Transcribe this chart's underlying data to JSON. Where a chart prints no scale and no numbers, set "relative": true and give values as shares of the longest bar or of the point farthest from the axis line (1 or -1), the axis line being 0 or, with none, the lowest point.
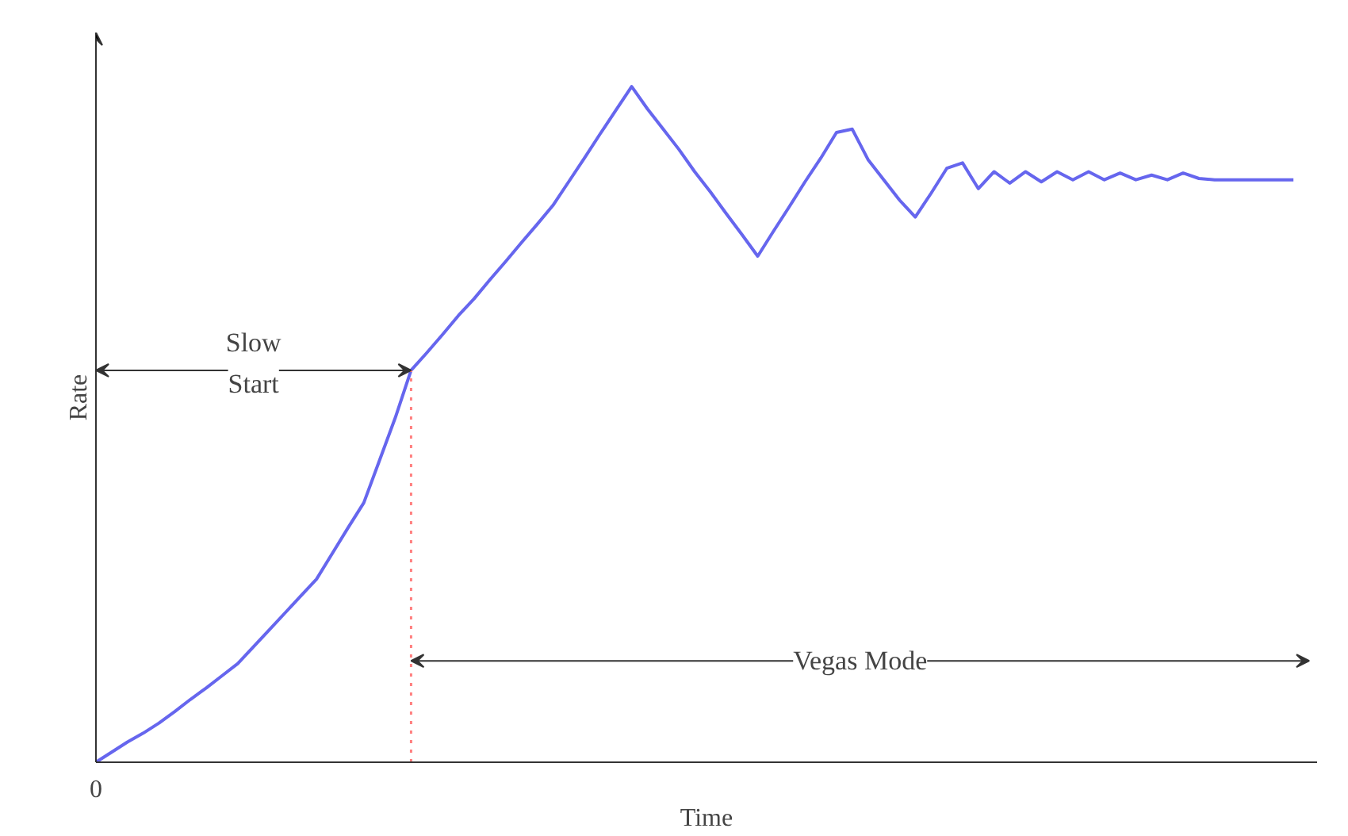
{
  "chart_data": {
    "type": "line",
    "relative": true,
    "xlabel": "Time",
    "ylabel": "Rate",
    "categories": [
      null,
      null,
      null,
      null,
      null,
      null,
      null,
      null,
      null,
      null,
      null,
      null,
      null,
      null,
      null,
      null,
      null,
      null,
      null,
      null,
      null,
      null,
      null,
      null,
      null,
      null,
      null,
      null,
      null,
      null,
      null,
      null,
      null,
      null,
      null,
      null,
      null,
      null,
      null,
      null,
      null,
      null,
      null,
      null,
      null,
      null,
      null,
      null,
      null,
      null,
      null,
      null,
      null,
      null,
      null,
      null,
      null,
      null,
      null,
      null,
      null,
      null,
      null,
      null,
      null,
      null,
      null,
      null,
      null,
      null,
      null,
      null,
      null,
      null,
      null,
      null,
      null
    ],
    "series": [
      {
        "color": "#6666ee",
        "values": [
          0,
          0.015,
          0.03,
          0.043,
          0.058,
          0.075,
          0.093,
          0.11,
          0.128,
          0.146,
          0.171,
          0.196,
          0.221,
          0.246,
          0.271,
          0.309,
          0.347,
          0.384,
          0.447,
          0.51,
          0.58,
          0.606,
          0.633,
          0.661,
          0.686,
          0.714,
          0.741,
          0.769,
          0.796,
          0.824,
          0.859,
          0.894,
          0.93,
          0.965,
          1,
          0.967,
          0.937,
          0.907,
          0.874,
          0.844,
          0.812,
          0.781,
          0.749,
          0.786,
          0.822,
          0.859,
          0.894,
          0.932,
          0.937,
          0.892,
          0.862,
          0.832,
          0.807,
          0.842,
          0.879,
          0.887,
          0.849,
          0.874,
          0.857,
          0.874,
          0.859,
          0.874,
          0.862,
          0.874,
          0.862,
          0.872,
          0.862,
          0.869,
          0.862,
          0.872,
          0.864,
          0.862,
          0.862,
          0.862,
          0.862,
          0.862,
          0.862
        ]
      }
    ],
    "annotations": [
      "Slow\nStart",
      "Vegas Mode",
      "0"
    ]
  }
}
